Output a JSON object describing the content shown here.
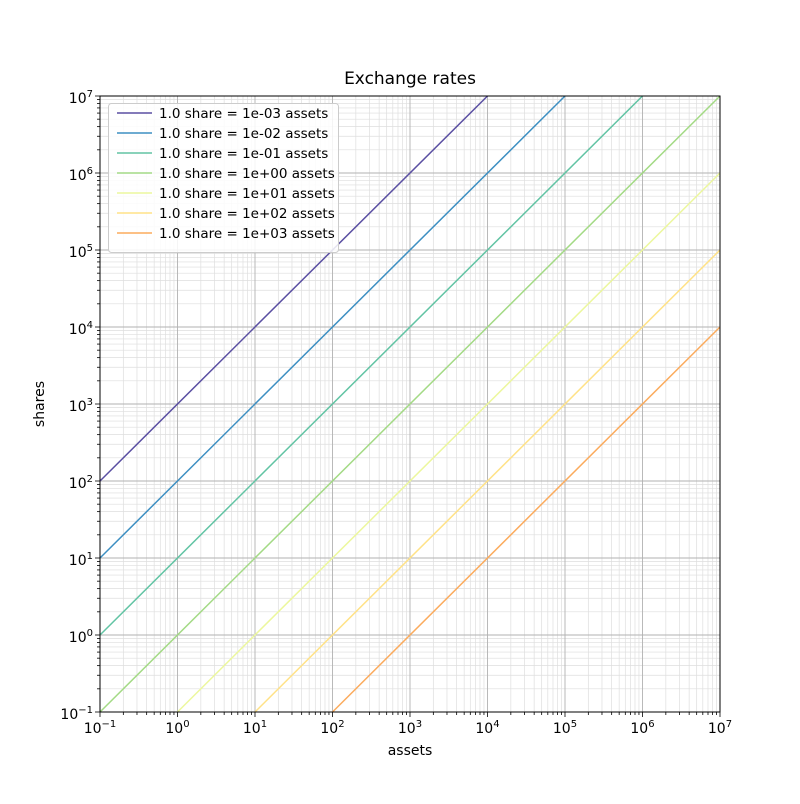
{
  "figure": {
    "background": "#ffffff",
    "spine_color": "#000000"
  },
  "chart_data": {
    "type": "line",
    "title": "Exchange rates",
    "xlabel": "assets",
    "ylabel": "shares",
    "xscale": "log",
    "yscale": "log",
    "xlim": [
      0.1,
      10000000
    ],
    "ylim": [
      0.1,
      10000000
    ],
    "x_tick_exponents": [
      -1,
      0,
      1,
      2,
      3,
      4,
      5,
      6,
      7
    ],
    "y_tick_exponents": [
      -1,
      0,
      1,
      2,
      3,
      4,
      5,
      6,
      7
    ],
    "tick_label_base": "10",
    "grid": {
      "major_color": "#b2b2b2",
      "minor_color": "#dedede",
      "minor_subdivisions": [
        2,
        3,
        4,
        5,
        6,
        7,
        8,
        9
      ]
    },
    "line_width": 1.5,
    "relation": "shares = assets / rate_assets_per_share",
    "series": [
      {
        "label": "1.0 share = 1e-03 assets",
        "rate_assets_per_share": 0.001,
        "color": "#5a4fa2"
      },
      {
        "label": "1.0 share = 1e-02 assets",
        "rate_assets_per_share": 0.01,
        "color": "#3d8fc2"
      },
      {
        "label": "1.0 share = 1e-01 assets",
        "rate_assets_per_share": 0.1,
        "color": "#62c4a4"
      },
      {
        "label": "1.0 share = 1e+00 assets",
        "rate_assets_per_share": 1,
        "color": "#a3da85"
      },
      {
        "label": "1.0 share = 1e+01 assets",
        "rate_assets_per_share": 10,
        "color": "#ecf79d"
      },
      {
        "label": "1.0 share = 1e+02 assets",
        "rate_assets_per_share": 100,
        "color": "#ffe287"
      },
      {
        "label": "1.0 share = 1e+03 assets",
        "rate_assets_per_share": 1000,
        "color": "#fbab5d"
      }
    ],
    "legend": {
      "position": "upper-left",
      "frame_color": "#cccccc",
      "background": "rgba(255,255,255,0.85)"
    }
  }
}
